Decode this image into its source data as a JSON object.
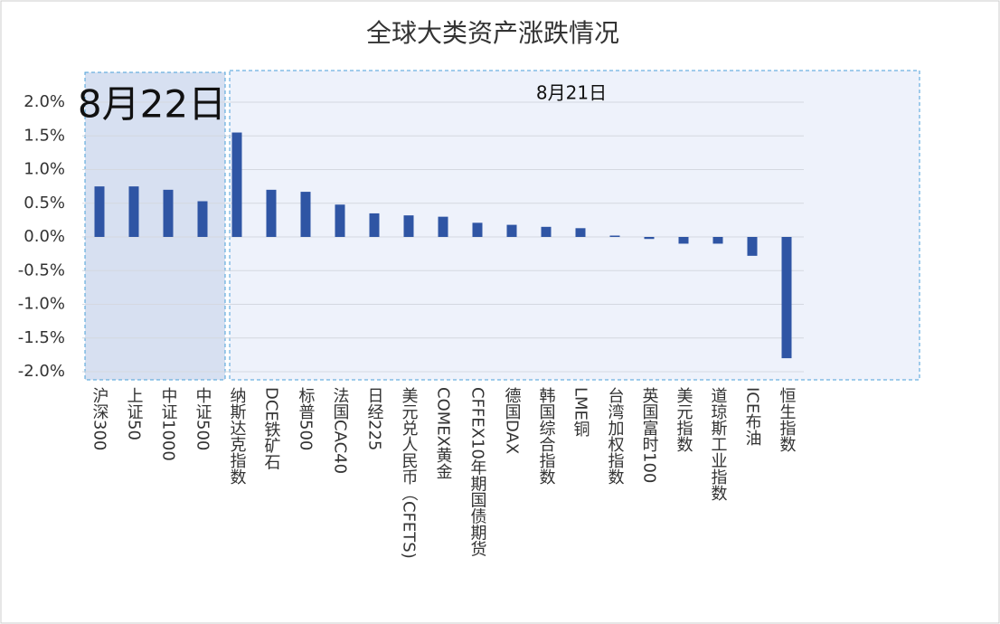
{
  "chart_data": {
    "type": "bar",
    "title": "全球大类资产涨跌情况",
    "annotations": [
      "8月22日",
      "8月21日"
    ],
    "categories": [
      "沪深300",
      "上证50",
      "中证1000",
      "中证500",
      "纳斯达克指数",
      "DCE铁矿石",
      "标普500",
      "法国CAC40",
      "日经225",
      "美元兑人民币（CFETS)",
      "COMEX黄金",
      "CFFEX10年期国债期货",
      "德国DAX",
      "韩国综合指数",
      "LME铜",
      "台湾加权指数",
      "英国富时100",
      "美元指数",
      "道琼斯工业指数",
      "ICE布油",
      "恒生指数"
    ],
    "values": [
      0.75,
      0.75,
      0.7,
      0.53,
      1.55,
      0.7,
      0.67,
      0.48,
      0.35,
      0.32,
      0.3,
      0.21,
      0.18,
      0.15,
      0.13,
      0.02,
      -0.03,
      -0.1,
      -0.1,
      -0.28,
      -1.8
    ],
    "color": "#2f55a4",
    "ylim": [
      -2,
      2
    ],
    "yticks": [
      {
        "value": -2,
        "label": "-2.0%"
      },
      {
        "value": -1.5,
        "label": "-1.5%"
      },
      {
        "value": -1,
        "label": "-1.0%"
      },
      {
        "value": -0.5,
        "label": "-0.5%"
      },
      {
        "value": 0,
        "label": "0.0%"
      },
      {
        "value": 0.5,
        "label": "0.5%"
      },
      {
        "value": 1,
        "label": "1.0%"
      },
      {
        "value": 1.5,
        "label": "1.5%"
      },
      {
        "value": 2,
        "label": "2.0%"
      }
    ],
    "grid": true
  }
}
